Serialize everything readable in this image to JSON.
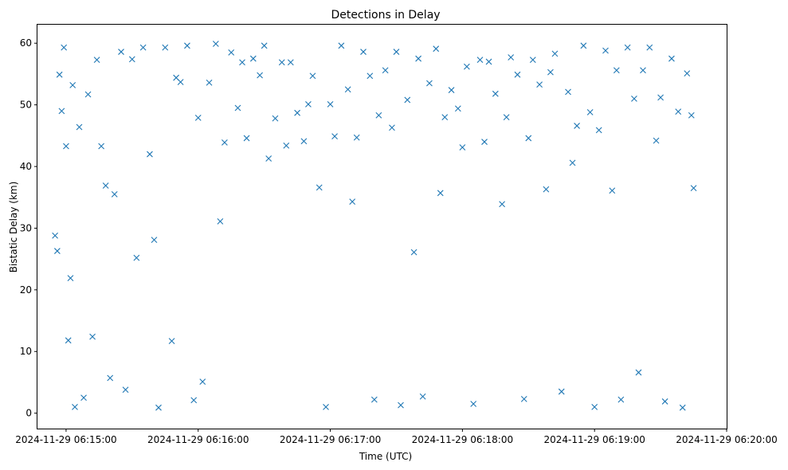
{
  "chart_data": {
    "type": "scatter",
    "title": "Detections in Delay",
    "xlabel": "Time (UTC)",
    "ylabel": "Bistatic Delay (km)",
    "marker": "x",
    "color": "#1f77b4",
    "grid": false,
    "xlim": [
      "2024-11-29 06:14:47",
      "2024-11-29 06:20:00"
    ],
    "ylim": [
      -2.5,
      63
    ],
    "x_ticks": [
      "2024-11-29 06:15:00",
      "2024-11-29 06:16:00",
      "2024-11-29 06:17:00",
      "2024-11-29 06:18:00",
      "2024-11-29 06:19:00",
      "2024-11-29 06:20:00"
    ],
    "y_ticks": [
      0,
      10,
      20,
      30,
      40,
      50,
      60
    ],
    "x_range_data": [
      "2024-11-29 06:14:55",
      "2024-11-29 06:19:45"
    ],
    "series": [
      {
        "points": [
          [
            "2024-11-29 06:14:55",
            28.8
          ],
          [
            "2024-11-29 06:14:56",
            26.3
          ],
          [
            "2024-11-29 06:14:57",
            54.9
          ],
          [
            "2024-11-29 06:14:58",
            49.0
          ],
          [
            "2024-11-29 06:14:59",
            59.3
          ],
          [
            "2024-11-29 06:15:00",
            43.3
          ],
          [
            "2024-11-29 06:15:01",
            11.8
          ],
          [
            "2024-11-29 06:15:02",
            21.9
          ],
          [
            "2024-11-29 06:15:03",
            53.2
          ],
          [
            "2024-11-29 06:15:04",
            1.0
          ],
          [
            "2024-11-29 06:15:06",
            46.4
          ],
          [
            "2024-11-29 06:15:08",
            2.5
          ],
          [
            "2024-11-29 06:15:10",
            51.7
          ],
          [
            "2024-11-29 06:15:12",
            12.4
          ],
          [
            "2024-11-29 06:15:14",
            57.3
          ],
          [
            "2024-11-29 06:15:16",
            43.3
          ],
          [
            "2024-11-29 06:15:18",
            36.9
          ],
          [
            "2024-11-29 06:15:20",
            5.7
          ],
          [
            "2024-11-29 06:15:22",
            35.5
          ],
          [
            "2024-11-29 06:15:25",
            58.6
          ],
          [
            "2024-11-29 06:15:27",
            3.8
          ],
          [
            "2024-11-29 06:15:30",
            57.4
          ],
          [
            "2024-11-29 06:15:32",
            25.2
          ],
          [
            "2024-11-29 06:15:35",
            59.3
          ],
          [
            "2024-11-29 06:15:38",
            42.0
          ],
          [
            "2024-11-29 06:15:40",
            28.1
          ],
          [
            "2024-11-29 06:15:42",
            0.9
          ],
          [
            "2024-11-29 06:15:45",
            59.3
          ],
          [
            "2024-11-29 06:15:48",
            11.7
          ],
          [
            "2024-11-29 06:15:50",
            54.4
          ],
          [
            "2024-11-29 06:15:52",
            53.7
          ],
          [
            "2024-11-29 06:15:55",
            59.6
          ],
          [
            "2024-11-29 06:15:58",
            2.1
          ],
          [
            "2024-11-29 06:16:00",
            47.9
          ],
          [
            "2024-11-29 06:16:02",
            5.1
          ],
          [
            "2024-11-29 06:16:05",
            53.6
          ],
          [
            "2024-11-29 06:16:08",
            59.9
          ],
          [
            "2024-11-29 06:16:10",
            31.1
          ],
          [
            "2024-11-29 06:16:12",
            43.9
          ],
          [
            "2024-11-29 06:16:15",
            58.5
          ],
          [
            "2024-11-29 06:16:18",
            49.5
          ],
          [
            "2024-11-29 06:16:20",
            56.9
          ],
          [
            "2024-11-29 06:16:22",
            44.6
          ],
          [
            "2024-11-29 06:16:25",
            57.5
          ],
          [
            "2024-11-29 06:16:28",
            54.8
          ],
          [
            "2024-11-29 06:16:30",
            59.6
          ],
          [
            "2024-11-29 06:16:32",
            41.3
          ],
          [
            "2024-11-29 06:16:35",
            47.8
          ],
          [
            "2024-11-29 06:16:38",
            56.9
          ],
          [
            "2024-11-29 06:16:40",
            43.4
          ],
          [
            "2024-11-29 06:16:42",
            56.9
          ],
          [
            "2024-11-29 06:16:45",
            48.7
          ],
          [
            "2024-11-29 06:16:48",
            44.1
          ],
          [
            "2024-11-29 06:16:50",
            50.1
          ],
          [
            "2024-11-29 06:16:52",
            54.7
          ],
          [
            "2024-11-29 06:16:55",
            36.6
          ],
          [
            "2024-11-29 06:16:58",
            1.0
          ],
          [
            "2024-11-29 06:17:00",
            50.1
          ],
          [
            "2024-11-29 06:17:02",
            44.9
          ],
          [
            "2024-11-29 06:17:05",
            59.6
          ],
          [
            "2024-11-29 06:17:08",
            52.5
          ],
          [
            "2024-11-29 06:17:10",
            34.3
          ],
          [
            "2024-11-29 06:17:12",
            44.7
          ],
          [
            "2024-11-29 06:17:15",
            58.6
          ],
          [
            "2024-11-29 06:17:18",
            54.7
          ],
          [
            "2024-11-29 06:17:20",
            2.2
          ],
          [
            "2024-11-29 06:17:22",
            48.3
          ],
          [
            "2024-11-29 06:17:25",
            55.6
          ],
          [
            "2024-11-29 06:17:28",
            46.3
          ],
          [
            "2024-11-29 06:17:30",
            58.6
          ],
          [
            "2024-11-29 06:17:32",
            1.3
          ],
          [
            "2024-11-29 06:17:35",
            50.8
          ],
          [
            "2024-11-29 06:17:38",
            26.1
          ],
          [
            "2024-11-29 06:17:40",
            57.5
          ],
          [
            "2024-11-29 06:17:42",
            2.7
          ],
          [
            "2024-11-29 06:17:45",
            53.5
          ],
          [
            "2024-11-29 06:17:48",
            59.1
          ],
          [
            "2024-11-29 06:17:50",
            35.7
          ],
          [
            "2024-11-29 06:17:52",
            48.0
          ],
          [
            "2024-11-29 06:17:55",
            52.4
          ],
          [
            "2024-11-29 06:17:58",
            49.4
          ],
          [
            "2024-11-29 06:18:00",
            43.1
          ],
          [
            "2024-11-29 06:18:02",
            56.2
          ],
          [
            "2024-11-29 06:18:05",
            1.5
          ],
          [
            "2024-11-29 06:18:08",
            57.3
          ],
          [
            "2024-11-29 06:18:10",
            44.0
          ],
          [
            "2024-11-29 06:18:12",
            57.0
          ],
          [
            "2024-11-29 06:18:15",
            51.8
          ],
          [
            "2024-11-29 06:18:18",
            33.9
          ],
          [
            "2024-11-29 06:18:20",
            48.0
          ],
          [
            "2024-11-29 06:18:22",
            57.7
          ],
          [
            "2024-11-29 06:18:25",
            54.9
          ],
          [
            "2024-11-29 06:18:28",
            2.3
          ],
          [
            "2024-11-29 06:18:30",
            44.6
          ],
          [
            "2024-11-29 06:18:32",
            57.3
          ],
          [
            "2024-11-29 06:18:35",
            53.3
          ],
          [
            "2024-11-29 06:18:38",
            36.3
          ],
          [
            "2024-11-29 06:18:40",
            55.3
          ],
          [
            "2024-11-29 06:18:42",
            58.3
          ],
          [
            "2024-11-29 06:18:45",
            3.5
          ],
          [
            "2024-11-29 06:18:48",
            52.1
          ],
          [
            "2024-11-29 06:18:50",
            40.6
          ],
          [
            "2024-11-29 06:18:52",
            46.6
          ],
          [
            "2024-11-29 06:18:55",
            59.6
          ],
          [
            "2024-11-29 06:18:58",
            48.8
          ],
          [
            "2024-11-29 06:19:00",
            1.0
          ],
          [
            "2024-11-29 06:19:02",
            45.9
          ],
          [
            "2024-11-29 06:19:05",
            58.8
          ],
          [
            "2024-11-29 06:19:08",
            36.1
          ],
          [
            "2024-11-29 06:19:10",
            55.6
          ],
          [
            "2024-11-29 06:19:12",
            2.2
          ],
          [
            "2024-11-29 06:19:15",
            59.3
          ],
          [
            "2024-11-29 06:19:18",
            51.0
          ],
          [
            "2024-11-29 06:19:20",
            6.6
          ],
          [
            "2024-11-29 06:19:22",
            55.6
          ],
          [
            "2024-11-29 06:19:25",
            59.3
          ],
          [
            "2024-11-29 06:19:28",
            44.2
          ],
          [
            "2024-11-29 06:19:30",
            51.2
          ],
          [
            "2024-11-29 06:19:32",
            1.9
          ],
          [
            "2024-11-29 06:19:35",
            57.5
          ],
          [
            "2024-11-29 06:19:38",
            48.9
          ],
          [
            "2024-11-29 06:19:40",
            0.9
          ],
          [
            "2024-11-29 06:19:42",
            55.1
          ],
          [
            "2024-11-29 06:19:44",
            48.3
          ],
          [
            "2024-11-29 06:19:45",
            36.5
          ]
        ]
      }
    ]
  }
}
